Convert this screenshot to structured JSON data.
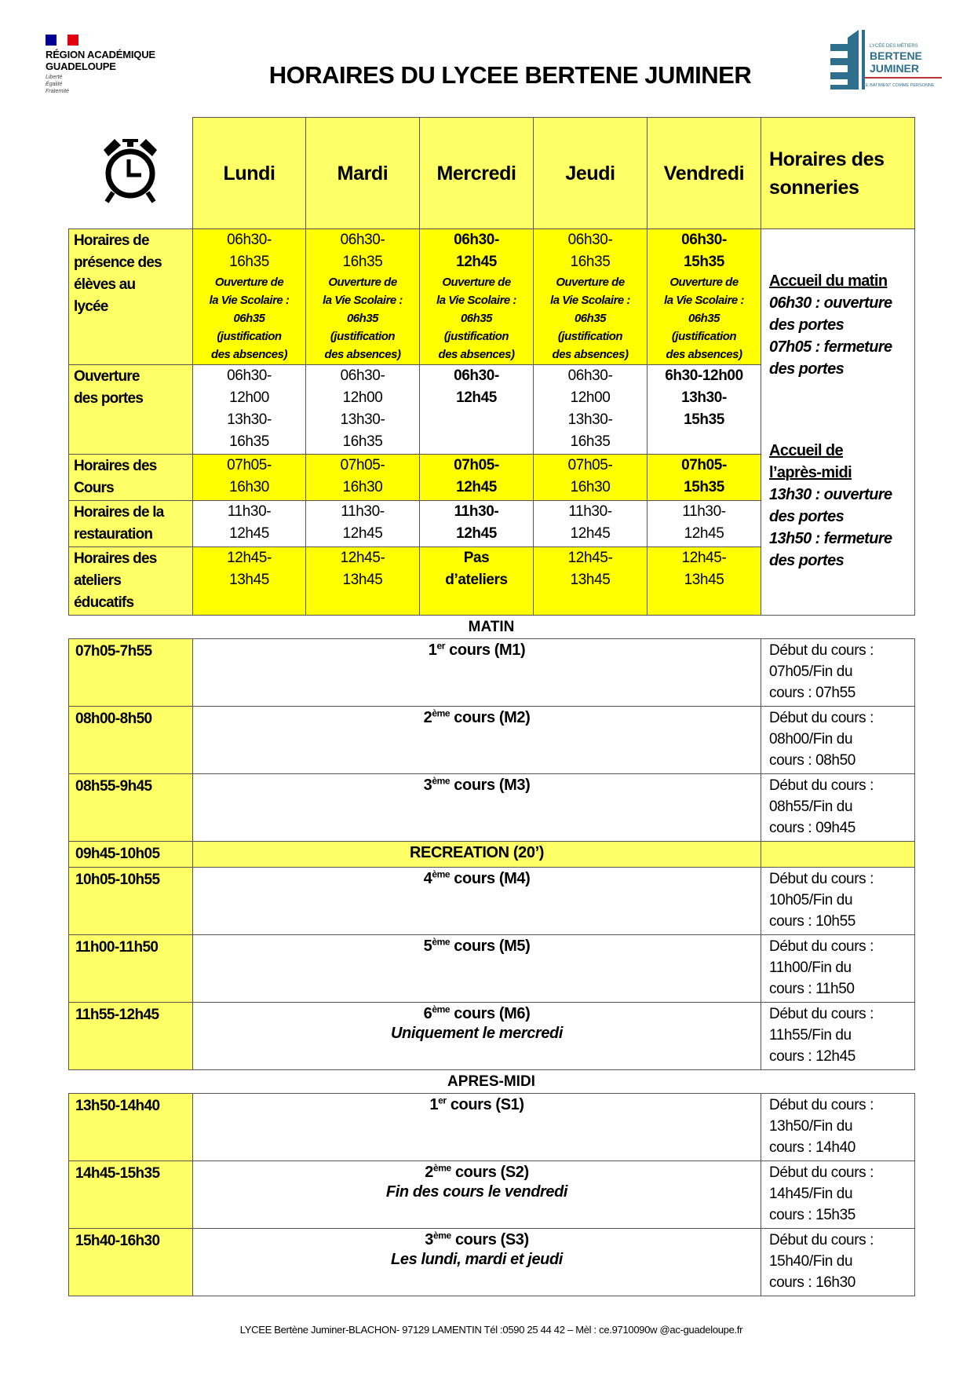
{
  "header": {
    "logo_left": {
      "lines": [
        "RÉGION ACADÉMIQUE",
        "GUADELOUPE"
      ],
      "motto": [
        "Liberté",
        "Égalité",
        "Fraternité"
      ]
    },
    "title": "HORAIRES DU LYCEE BERTENE JUMINER",
    "logo_right": {
      "lines": [
        "LYCÉE DES MÉTIERS",
        "BERTENE",
        "JUMINER",
        "LE BATIMENT COMME PERSONNE"
      ]
    }
  },
  "top_table": {
    "icon": "alarm-clock-icon",
    "days": [
      "Lundi",
      "Mardi",
      "Mercredi",
      "Jeudi",
      "Vendredi"
    ],
    "sonneries_header": "Horaires des sonneries",
    "rows": [
      {
        "label": "Horaires de\nprésence des\nélèves au\nlycée",
        "yellow": true,
        "cells": [
          {
            "t": "06h30-\n16h35",
            "b": false,
            "note": "Ouverture de\nla Vie Scolaire :\n06h35\n(justification\ndes absences)"
          },
          {
            "t": "06h30-\n16h35",
            "b": false,
            "note": "Ouverture de\nla Vie Scolaire :\n06h35\n(justification\ndes absences)"
          },
          {
            "t": "06h30-\n12h45",
            "b": true,
            "note": "Ouverture de\nla Vie Scolaire :\n06h35\n(justification\ndes absences)"
          },
          {
            "t": "06h30-\n16h35",
            "b": false,
            "note": "Ouverture de\nla Vie Scolaire :\n06h35\n(justification\ndes absences)"
          },
          {
            "t": "06h30-\n15h35",
            "b": true,
            "note": "Ouverture de\nla Vie Scolaire :\n06h35\n(justification\ndes absences)"
          }
        ]
      },
      {
        "label": "Ouverture\ndes portes",
        "yellow": false,
        "cells": [
          {
            "t": "06h30-\n12h00\n13h30-\n16h35",
            "b": false
          },
          {
            "t": "06h30-\n12h00\n13h30-\n16h35",
            "b": false
          },
          {
            "t": "06h30-\n12h45",
            "b": true
          },
          {
            "t": "06h30-\n12h00\n13h30-\n16h35",
            "b": false
          },
          {
            "t": "6h30-12h00\n13h30-\n15h35",
            "b": true
          }
        ]
      },
      {
        "label": "Horaires des\nCours",
        "yellow": true,
        "cells": [
          {
            "t": "07h05-\n16h30",
            "b": false
          },
          {
            "t": "07h05-\n16h30",
            "b": false
          },
          {
            "t": "07h05-\n12h45",
            "b": true
          },
          {
            "t": "07h05-\n16h30",
            "b": false
          },
          {
            "t": "07h05-\n15h35",
            "b": true
          }
        ]
      },
      {
        "label": "Horaires de la\nrestauration",
        "yellow": false,
        "cells": [
          {
            "t": "11h30-\n12h45",
            "b": false
          },
          {
            "t": "11h30-\n12h45",
            "b": false
          },
          {
            "t": "11h30-\n12h45",
            "b": true
          },
          {
            "t": "11h30-\n12h45",
            "b": false
          },
          {
            "t": "11h30-\n12h45",
            "b": false
          }
        ]
      },
      {
        "label": "Horaires des\nateliers\néducatifs",
        "yellow": true,
        "cells": [
          {
            "t": "12h45-\n13h45",
            "b": false
          },
          {
            "t": "12h45-\n13h45",
            "b": false
          },
          {
            "t": "Pas\nd’ateliers",
            "b": true
          },
          {
            "t": "12h45-\n13h45",
            "b": false
          },
          {
            "t": "12h45-\n13h45",
            "b": false
          }
        ]
      }
    ],
    "sonneries": {
      "morning_title": "Accueil du matin",
      "morning_text": "06h30 : ouverture\ndes portes\n07h05 : fermeture\ndes portes",
      "afternoon_title": "Accueil de\nl’après-midi",
      "afternoon_text": "13h30 : ouverture\ndes portes\n13h50 : fermeture\ndes portes"
    }
  },
  "sections": [
    {
      "title": "MATIN",
      "rows": [
        {
          "time": "07h05-7h55",
          "num": "1",
          "sup": "er",
          "rest": " cours (M1)",
          "sub": "",
          "right": "Début du cours :\n07h05/Fin du\ncours : 07h55"
        },
        {
          "time": "08h00-8h50",
          "num": "2",
          "sup": "ème",
          "rest": " cours (M2)",
          "sub": "",
          "right": "Début du cours :\n08h00/Fin du\ncours : 08h50"
        },
        {
          "time": "08h55-9h45",
          "num": "3",
          "sup": "ème",
          "rest": " cours (M3)",
          "sub": "",
          "right": "Début du cours :\n08h55/Fin du\ncours : 09h45"
        },
        {
          "time": "09h45-10h05",
          "break": "RECREATION (20’)"
        },
        {
          "time": "10h05-10h55",
          "num": "4",
          "sup": "ème",
          "rest": " cours (M4)",
          "sub": "",
          "right": "Début du cours :\n10h05/Fin du\ncours : 10h55"
        },
        {
          "time": "11h00-11h50",
          "num": "5",
          "sup": "ème",
          "rest": " cours (M5)",
          "sub": "",
          "right": "Début du cours :\n11h00/Fin du\ncours : 11h50"
        },
        {
          "time": "11h55-12h45",
          "num": "6",
          "sup": "ème",
          "rest": " cours (M6)",
          "sub": "Uniquement le mercredi",
          "right": "Début du cours :\n11h55/Fin du\ncours : 12h45"
        }
      ]
    },
    {
      "title": "APRES-MIDI",
      "rows": [
        {
          "time": "13h50-14h40",
          "num": "1",
          "sup": "er",
          "rest": " cours (S1)",
          "sub": "",
          "right": "Début du cours :\n13h50/Fin du\ncours : 14h40"
        },
        {
          "time": "14h45-15h35",
          "num": "2",
          "sup": "ème",
          "rest": " cours (S2)",
          "sub": "Fin des cours le vendredi",
          "right": "Début du cours :\n14h45/Fin du\ncours : 15h35"
        },
        {
          "time": "15h40-16h30",
          "num": "3",
          "sup": "ème",
          "rest": " cours (S3)",
          "sub": "Les lundi, mardi et jeudi",
          "right": "Début du cours :\n15h40/Fin du\ncours : 16h30"
        }
      ]
    }
  ],
  "footer": "LYCEE Bertène Juminer-BLACHON- 97129 LAMENTIN Tél :0590 25 44 42 – Mèl : ce.9710090w @ac-guadeloupe.fr",
  "colors": {
    "yellow": "#ffff00",
    "light_yellow": "#ffff66",
    "logo_blue": "#2e6f8e",
    "flag_blue": "#000091",
    "flag_red": "#e1000f"
  }
}
